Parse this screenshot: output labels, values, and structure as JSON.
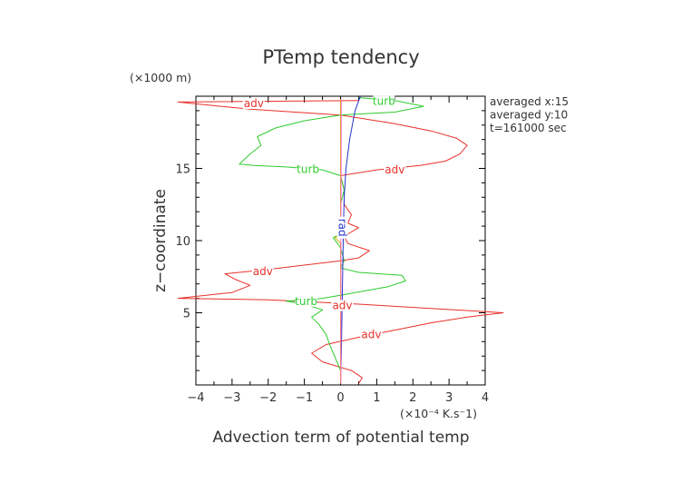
{
  "chart_data": {
    "type": "line",
    "title": "PTemp tendency",
    "xlabel": "Advection term of potential temp",
    "x_unit": "(×10⁻⁴ K.s⁻1)",
    "ylabel": "z−coordinate",
    "y_unit": "(×1000 m)",
    "xlim": [
      -4,
      4
    ],
    "ylim": [
      0,
      20
    ],
    "x_ticks": [
      -4,
      -3,
      -2,
      -1,
      0,
      1,
      2,
      3,
      4
    ],
    "x_tick_labels": [
      "−4",
      "−3",
      "−2",
      "−1",
      "0",
      "1",
      "2",
      "3",
      "4"
    ],
    "y_ticks": [
      5,
      10,
      15
    ],
    "y_tick_labels": [
      "5",
      "10",
      "15"
    ],
    "annotations": [
      "averaged  x:15",
      "averaged  y:10",
      "t=161000 sec"
    ],
    "series": [
      {
        "name": "adv",
        "color": "#e8312a",
        "labels_at": [
          [
            -2.4,
            19.5
          ],
          [
            1.5,
            14.9
          ],
          [
            -2.15,
            7.85
          ],
          [
            0.05,
            5.5
          ],
          [
            0.85,
            3.5
          ]
        ],
        "points": [
          [
            0.5,
            0.1
          ],
          [
            0.6,
            0.5
          ],
          [
            0.3,
            1.0
          ],
          [
            -0.5,
            1.6
          ],
          [
            -0.8,
            2.2
          ],
          [
            -0.4,
            2.8
          ],
          [
            0.5,
            3.3
          ],
          [
            1.5,
            3.8
          ],
          [
            2.5,
            4.3
          ],
          [
            3.5,
            4.7
          ],
          [
            4.5,
            5.0
          ],
          [
            2.5,
            5.3
          ],
          [
            0.5,
            5.6
          ],
          [
            -2.0,
            5.9
          ],
          [
            -4.5,
            6.0
          ],
          [
            -3.0,
            6.4
          ],
          [
            -2.5,
            6.9
          ],
          [
            -2.9,
            7.3
          ],
          [
            -3.2,
            7.7
          ],
          [
            -2.0,
            8.0
          ],
          [
            -1.0,
            8.3
          ],
          [
            0.0,
            8.6
          ],
          [
            0.5,
            8.8
          ],
          [
            0.8,
            9.3
          ],
          [
            0.2,
            9.8
          ],
          [
            0.1,
            10.3
          ],
          [
            0.3,
            10.6
          ],
          [
            0.5,
            10.9
          ],
          [
            0.2,
            11.2
          ],
          [
            0.3,
            11.8
          ],
          [
            0.1,
            12.5
          ],
          [
            0.1,
            13.5
          ],
          [
            0.0,
            14.5
          ],
          [
            1.0,
            14.9
          ],
          [
            2.2,
            15.2
          ],
          [
            2.9,
            15.5
          ],
          [
            3.3,
            16.0
          ],
          [
            3.5,
            16.6
          ],
          [
            3.2,
            17.1
          ],
          [
            2.5,
            17.6
          ],
          [
            1.5,
            18.1
          ],
          [
            0.0,
            18.7
          ],
          [
            -2.5,
            19.1
          ],
          [
            -4.5,
            19.6
          ],
          [
            0.5,
            19.7
          ]
        ]
      },
      {
        "name": "turb",
        "color": "#2fcc2f",
        "labels_at": [
          [
            1.2,
            19.65
          ],
          [
            -0.9,
            14.95
          ],
          [
            -0.95,
            5.8
          ]
        ],
        "points": [
          [
            0.0,
            0.1
          ],
          [
            0.0,
            0.5
          ],
          [
            0.0,
            1.0
          ],
          [
            -0.1,
            1.6
          ],
          [
            -0.2,
            2.2
          ],
          [
            -0.3,
            2.8
          ],
          [
            -0.4,
            3.5
          ],
          [
            -0.6,
            4.2
          ],
          [
            -0.8,
            4.7
          ],
          [
            -0.5,
            5.2
          ],
          [
            -1.0,
            5.6
          ],
          [
            -1.5,
            5.8
          ],
          [
            -0.5,
            6.0
          ],
          [
            0.2,
            6.3
          ],
          [
            1.3,
            6.8
          ],
          [
            1.8,
            7.2
          ],
          [
            1.7,
            7.6
          ],
          [
            0.5,
            7.8
          ],
          [
            0.0,
            8.1
          ],
          [
            0.1,
            8.6
          ],
          [
            0.0,
            9.5
          ],
          [
            -0.2,
            10.2
          ],
          [
            0.1,
            10.6
          ],
          [
            0.0,
            11.2
          ],
          [
            0.0,
            12.5
          ],
          [
            0.1,
            13.5
          ],
          [
            0.0,
            14.5
          ],
          [
            -0.5,
            14.9
          ],
          [
            -1.5,
            15.1
          ],
          [
            -2.4,
            15.2
          ],
          [
            -2.8,
            15.3
          ],
          [
            -2.5,
            16.0
          ],
          [
            -2.2,
            16.6
          ],
          [
            -2.3,
            17.2
          ],
          [
            -1.8,
            17.8
          ],
          [
            -1.0,
            18.3
          ],
          [
            0.0,
            18.7
          ],
          [
            1.5,
            18.9
          ],
          [
            2.3,
            19.3
          ],
          [
            1.5,
            19.7
          ],
          [
            0.5,
            19.9
          ]
        ]
      },
      {
        "name": "rad",
        "color": "#2233cc",
        "labels_at": [
          [
            0.05,
            10.9
          ]
        ],
        "points": [
          [
            0.0,
            0.1
          ],
          [
            0.02,
            2.0
          ],
          [
            0.04,
            5.0
          ],
          [
            0.06,
            8.0
          ],
          [
            0.08,
            11.0
          ],
          [
            0.1,
            13.0
          ],
          [
            0.15,
            15.0
          ],
          [
            0.25,
            17.0
          ],
          [
            0.4,
            19.0
          ],
          [
            0.55,
            20.0
          ]
        ]
      },
      {
        "name": "",
        "color": "#d4b800",
        "points": [
          [
            0.0,
            0.1
          ],
          [
            0.0,
            5.0
          ],
          [
            0.0,
            9.8
          ],
          [
            -0.15,
            10.2
          ],
          [
            0.05,
            10.5
          ],
          [
            0.0,
            11.0
          ],
          [
            0.0,
            15.0
          ],
          [
            0.0,
            19.8
          ]
        ]
      },
      {
        "name": "",
        "color": "#ff66cc",
        "points": [
          [
            0.01,
            0.1
          ],
          [
            0.01,
            10.0
          ],
          [
            0.02,
            19.8
          ]
        ]
      }
    ]
  }
}
